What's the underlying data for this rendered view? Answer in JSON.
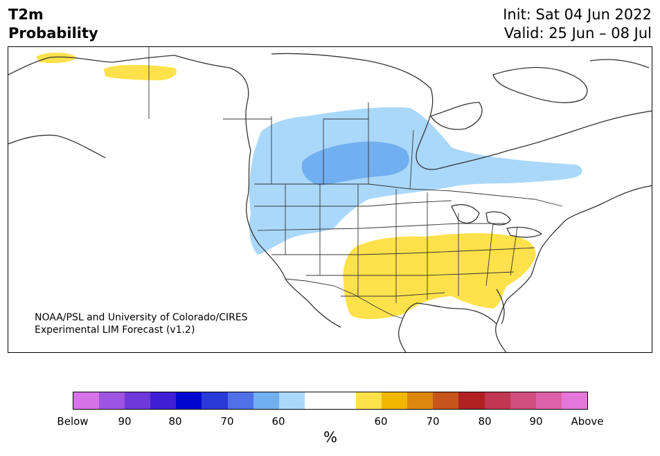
{
  "title": {
    "variable": "T2m",
    "subtitle": "Probability",
    "init": "Init: Sat 04 Jun 2022",
    "valid": "Valid: 25 Jun – 08 Jul"
  },
  "map": {
    "credit_line1": "NOAA/PSL and University of Colorado/CIRES",
    "credit_line2": "Experimental LIM Forecast (v1.2)",
    "regions": [
      {
        "label": "Below",
        "prob": "50-60",
        "color": "#aad8fb",
        "area": "NW US / central Canada"
      },
      {
        "label": "Below",
        "prob": "60-70",
        "color": "#72aff0",
        "area": "Saskatchewan / Manitoba"
      },
      {
        "label": "Above",
        "prob": "50-60",
        "color": "#ffe14c",
        "area": "Southern US / Alaska spots"
      }
    ]
  },
  "colorbar": {
    "colors": [
      "#d673e8",
      "#9d54e0",
      "#6f38da",
      "#3f1fd4",
      "#0008d0",
      "#2a3ad9",
      "#4f70e6",
      "#72aff0",
      "#aad8fb",
      "#ffffff",
      "#ffffff",
      "#ffe14c",
      "#f2b700",
      "#de870f",
      "#c7541b",
      "#b12121",
      "#c13652",
      "#d14f7f",
      "#dd61a9",
      "#e776dc"
    ],
    "ticks": [
      "Below",
      "90",
      "80",
      "70",
      "60",
      "60",
      "70",
      "80",
      "90",
      "Above"
    ],
    "unit": "%"
  }
}
